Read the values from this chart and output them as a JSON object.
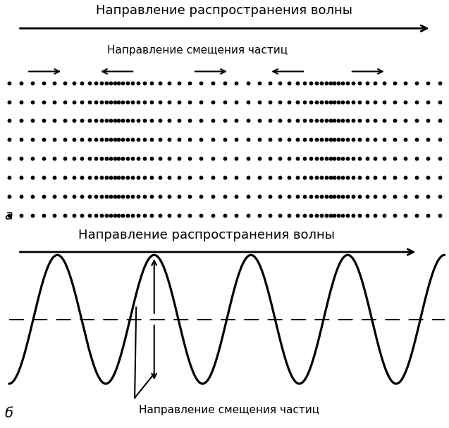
{
  "title_a": "Направление распространения волны",
  "title_a2": "Направление смещения частиц",
  "label_a": "а",
  "title_b": "Направление распространения волны",
  "label_b": "б",
  "label_b2": "Направление смещения частиц",
  "bg_color": "#ffffff",
  "dot_color": "#000000",
  "n_rows": 8,
  "wave_color": "#000000",
  "dashed_color": "#000000",
  "font_size_title": 13,
  "font_size_label": 11,
  "font_size_italic": 14
}
